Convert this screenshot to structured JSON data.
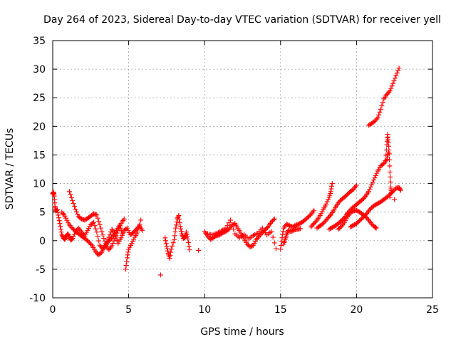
{
  "chart_data": {
    "type": "scatter",
    "title": "Day 264 of 2023, Sidereal Day-to-day VTEC variation (SDTVAR) for receiver yell",
    "xlabel": "GPS time / hours",
    "ylabel": "SDTVAR / TECUs",
    "xlim": [
      0,
      25
    ],
    "ylim": [
      -10,
      35
    ],
    "xticks": [
      0,
      5,
      10,
      15,
      20,
      25
    ],
    "yticks": [
      -10,
      -5,
      0,
      5,
      10,
      15,
      20,
      25,
      30,
      35
    ],
    "xtick_labels": [
      "0",
      "5",
      "10",
      "15",
      "20",
      "25"
    ],
    "ytick_labels": [
      "-10",
      "-5",
      "0",
      "5",
      "10",
      "15",
      "20",
      "25",
      "30",
      "35"
    ],
    "grid": true,
    "marker": "+",
    "marker_color": "#ff0000",
    "series": [
      {
        "name": "s1",
        "points": [
          [
            0.0,
            8.2
          ],
          [
            0.05,
            8.5
          ],
          [
            0.1,
            7.8
          ],
          [
            0.15,
            6.0
          ],
          [
            0.2,
            5.2
          ],
          [
            0.3,
            5.4
          ],
          [
            0.4,
            4.0
          ],
          [
            0.5,
            2.5
          ],
          [
            0.6,
            1.0
          ],
          [
            0.7,
            0.5
          ],
          [
            0.8,
            0.2
          ],
          [
            0.9,
            0.8
          ],
          [
            1.0,
            1.2
          ],
          [
            1.1,
            0.6
          ],
          [
            1.2,
            0.1
          ],
          [
            1.3,
            0.4
          ],
          [
            1.5,
            1.5
          ],
          [
            1.7,
            2.2
          ],
          [
            1.9,
            1.5
          ],
          [
            2.1,
            0.8
          ],
          [
            2.3,
            1.8
          ],
          [
            2.5,
            2.8
          ],
          [
            2.7,
            3.2
          ],
          [
            2.9,
            1.5
          ],
          [
            3.1,
            -0.8
          ],
          [
            3.3,
            -1.5
          ],
          [
            3.5,
            -0.5
          ],
          [
            3.7,
            0.6
          ],
          [
            3.9,
            2.0
          ],
          [
            4.1,
            1.2
          ],
          [
            4.3,
            -0.5
          ],
          [
            4.5,
            0.5
          ],
          [
            4.7,
            1.8
          ],
          [
            4.9,
            2.2
          ],
          [
            5.1,
            1.0
          ],
          [
            5.3,
            1.4
          ],
          [
            5.5,
            2.0
          ],
          [
            5.7,
            2.6
          ],
          [
            5.9,
            1.8
          ]
        ]
      },
      {
        "name": "s2",
        "points": [
          [
            0.6,
            5.0
          ],
          [
            0.8,
            4.3
          ],
          [
            1.0,
            3.2
          ],
          [
            1.2,
            2.4
          ],
          [
            1.4,
            1.9
          ],
          [
            1.6,
            1.4
          ],
          [
            1.8,
            1.0
          ],
          [
            2.0,
            0.6
          ],
          [
            2.2,
            0.2
          ],
          [
            2.4,
            -0.3
          ],
          [
            2.6,
            -0.9
          ],
          [
            2.8,
            -1.8
          ],
          [
            3.0,
            -2.5
          ],
          [
            3.2,
            -2.1
          ],
          [
            3.4,
            -1.2
          ],
          [
            3.6,
            -0.4
          ],
          [
            3.8,
            0.2
          ],
          [
            4.0,
            0.9
          ],
          [
            4.2,
            1.8
          ],
          [
            4.4,
            2.7
          ],
          [
            4.6,
            1.2
          ]
        ]
      },
      {
        "name": "s3",
        "points": [
          [
            1.1,
            8.6
          ],
          [
            1.3,
            7.0
          ],
          [
            1.5,
            5.5
          ],
          [
            1.7,
            4.2
          ],
          [
            1.9,
            3.8
          ],
          [
            2.1,
            3.6
          ],
          [
            2.3,
            3.9
          ],
          [
            2.5,
            4.3
          ],
          [
            2.7,
            4.7
          ],
          [
            2.9,
            4.5
          ],
          [
            3.1,
            2.8
          ],
          [
            3.3,
            1.0
          ],
          [
            3.5,
            -0.8
          ],
          [
            3.7,
            -1.6
          ],
          [
            3.9,
            -0.9
          ],
          [
            4.1,
            0.4
          ],
          [
            4.3,
            1.8
          ],
          [
            4.5,
            3.0
          ],
          [
            4.7,
            3.8
          ],
          [
            4.8,
            -5.0
          ],
          [
            4.9,
            -3.0
          ],
          [
            5.0,
            -1.5
          ],
          [
            5.2,
            -0.5
          ],
          [
            5.4,
            0.6
          ],
          [
            5.6,
            1.5
          ],
          [
            5.8,
            3.6
          ]
        ]
      },
      {
        "name": "s4",
        "points": [
          [
            7.1,
            -6.0
          ],
          [
            7.4,
            0.5
          ],
          [
            7.5,
            -1.0
          ],
          [
            7.6,
            -2.2
          ],
          [
            7.7,
            -3.1
          ],
          [
            7.8,
            -1.5
          ],
          [
            8.0,
            0.2
          ],
          [
            8.1,
            2.2
          ],
          [
            8.2,
            3.8
          ],
          [
            8.3,
            4.4
          ],
          [
            8.4,
            2.5
          ],
          [
            8.5,
            1.2
          ],
          [
            8.6,
            0.4
          ],
          [
            8.7,
            0.6
          ],
          [
            8.8,
            1.5
          ],
          [
            8.9,
            0.3
          ],
          [
            9.0,
            -1.6
          ],
          [
            9.6,
            -1.7
          ]
        ]
      },
      {
        "name": "s5",
        "points": [
          [
            10.0,
            1.6
          ],
          [
            10.2,
            0.8
          ],
          [
            10.4,
            0.2
          ],
          [
            10.6,
            0.6
          ],
          [
            10.8,
            0.9
          ],
          [
            11.0,
            1.0
          ],
          [
            11.2,
            1.4
          ],
          [
            11.4,
            1.6
          ],
          [
            11.6,
            2.0
          ],
          [
            11.8,
            2.7
          ],
          [
            12.0,
            3.0
          ],
          [
            12.2,
            2.1
          ],
          [
            12.4,
            1.2
          ],
          [
            12.6,
            0.3
          ],
          [
            12.8,
            -0.6
          ],
          [
            13.0,
            -1.1
          ],
          [
            13.2,
            -0.8
          ],
          [
            13.4,
            0.2
          ],
          [
            13.6,
            0.8
          ],
          [
            13.8,
            1.4
          ],
          [
            14.0,
            1.9
          ],
          [
            14.2,
            2.5
          ],
          [
            14.4,
            3.3
          ],
          [
            14.6,
            3.8
          ]
        ]
      },
      {
        "name": "s6",
        "points": [
          [
            10.2,
            1.2
          ],
          [
            10.5,
            1.0
          ],
          [
            10.8,
            1.3
          ],
          [
            11.1,
            1.7
          ],
          [
            11.4,
            2.2
          ],
          [
            11.7,
            3.6
          ],
          [
            12.0,
            1.2
          ],
          [
            12.3,
            0.5
          ],
          [
            12.6,
            1.1
          ],
          [
            12.9,
            0.3
          ],
          [
            13.2,
            0.9
          ],
          [
            13.5,
            1.3
          ],
          [
            13.8,
            2.2
          ],
          [
            14.1,
            1.0
          ],
          [
            14.4,
            1.6
          ],
          [
            14.7,
            -1.4
          ]
        ]
      },
      {
        "name": "s7",
        "points": [
          [
            15.0,
            -1.5
          ],
          [
            15.1,
            0.5
          ],
          [
            15.2,
            2.2
          ],
          [
            15.4,
            2.9
          ],
          [
            15.6,
            2.6
          ],
          [
            15.8,
            2.4
          ],
          [
            16.0,
            2.7
          ],
          [
            16.2,
            2.9
          ],
          [
            16.4,
            3.2
          ],
          [
            16.6,
            3.6
          ],
          [
            16.8,
            4.1
          ],
          [
            17.0,
            4.6
          ],
          [
            17.2,
            5.3
          ],
          [
            15.2,
            -0.6
          ],
          [
            15.3,
            0.2
          ],
          [
            15.4,
            1.1
          ],
          [
            15.5,
            1.8
          ],
          [
            15.7,
            1.6
          ],
          [
            15.9,
            1.9
          ],
          [
            16.1,
            2.0
          ],
          [
            16.3,
            2.1
          ]
        ]
      },
      {
        "name": "s8",
        "points": [
          [
            17.0,
            2.4
          ],
          [
            17.2,
            3.0
          ],
          [
            17.4,
            3.6
          ],
          [
            17.6,
            4.4
          ],
          [
            17.8,
            5.4
          ],
          [
            18.0,
            6.4
          ],
          [
            18.2,
            7.6
          ],
          [
            18.3,
            8.6
          ],
          [
            18.4,
            10.0
          ]
        ]
      },
      {
        "name": "s9",
        "points": [
          [
            17.4,
            2.2
          ],
          [
            17.6,
            2.6
          ],
          [
            17.8,
            3.0
          ],
          [
            18.0,
            3.6
          ],
          [
            18.2,
            4.2
          ],
          [
            18.4,
            4.9
          ],
          [
            18.6,
            5.8
          ],
          [
            18.8,
            6.6
          ],
          [
            19.0,
            7.2
          ],
          [
            19.2,
            7.6
          ],
          [
            19.4,
            8.1
          ],
          [
            19.6,
            8.6
          ],
          [
            19.8,
            9.0
          ],
          [
            20.0,
            9.7
          ]
        ]
      },
      {
        "name": "s10",
        "points": [
          [
            18.2,
            2.0
          ],
          [
            18.4,
            2.3
          ],
          [
            18.6,
            2.6
          ],
          [
            18.8,
            3.0
          ],
          [
            19.0,
            3.5
          ],
          [
            19.2,
            4.0
          ],
          [
            19.4,
            4.8
          ],
          [
            19.6,
            5.4
          ],
          [
            19.8,
            5.9
          ],
          [
            20.0,
            6.3
          ],
          [
            20.2,
            6.8
          ],
          [
            20.4,
            7.2
          ],
          [
            20.6,
            7.8
          ],
          [
            20.8,
            8.6
          ],
          [
            21.0,
            9.8
          ],
          [
            21.2,
            11.0
          ],
          [
            21.4,
            12.2
          ],
          [
            21.6,
            13.1
          ],
          [
            21.8,
            13.5
          ],
          [
            22.0,
            14.2
          ],
          [
            22.1,
            15.5
          ]
        ]
      },
      {
        "name": "s11",
        "points": [
          [
            18.8,
            2.0
          ],
          [
            19.0,
            2.5
          ],
          [
            19.2,
            3.2
          ],
          [
            19.4,
            4.2
          ],
          [
            19.6,
            4.9
          ],
          [
            19.8,
            5.2
          ],
          [
            20.0,
            5.3
          ],
          [
            20.2,
            5.0
          ],
          [
            20.4,
            4.6
          ],
          [
            20.6,
            4.2
          ],
          [
            20.8,
            3.6
          ],
          [
            21.0,
            2.9
          ],
          [
            21.2,
            2.4
          ],
          [
            21.3,
            2.2
          ]
        ]
      },
      {
        "name": "s12",
        "points": [
          [
            19.6,
            2.4
          ],
          [
            19.8,
            2.7
          ],
          [
            20.0,
            3.0
          ],
          [
            20.2,
            3.5
          ],
          [
            20.4,
            4.0
          ],
          [
            20.6,
            4.5
          ],
          [
            20.8,
            5.2
          ],
          [
            21.0,
            5.8
          ],
          [
            21.2,
            6.2
          ],
          [
            21.4,
            6.5
          ],
          [
            21.6,
            6.8
          ],
          [
            21.8,
            7.2
          ],
          [
            22.0,
            7.6
          ],
          [
            22.2,
            8.1
          ],
          [
            22.4,
            8.6
          ],
          [
            22.6,
            9.2
          ],
          [
            22.8,
            9.3
          ],
          [
            22.9,
            8.8
          ],
          [
            22.5,
            7.2
          ]
        ]
      },
      {
        "name": "s13",
        "points": [
          [
            21.9,
            14.0
          ],
          [
            22.0,
            16.8
          ],
          [
            22.05,
            18.6
          ],
          [
            22.1,
            17.2
          ],
          [
            22.15,
            15.2
          ],
          [
            22.2,
            12.0
          ],
          [
            22.25,
            9.4
          ],
          [
            22.3,
            8.4
          ],
          [
            22.2,
            7.6
          ]
        ]
      },
      {
        "name": "s14",
        "points": [
          [
            20.8,
            20.2
          ],
          [
            21.0,
            20.5
          ],
          [
            21.2,
            20.9
          ],
          [
            21.4,
            21.5
          ],
          [
            21.6,
            23.0
          ],
          [
            21.8,
            24.8
          ],
          [
            22.0,
            25.6
          ],
          [
            22.2,
            26.2
          ],
          [
            22.4,
            27.5
          ],
          [
            22.6,
            28.9
          ],
          [
            22.8,
            30.2
          ]
        ]
      }
    ]
  }
}
